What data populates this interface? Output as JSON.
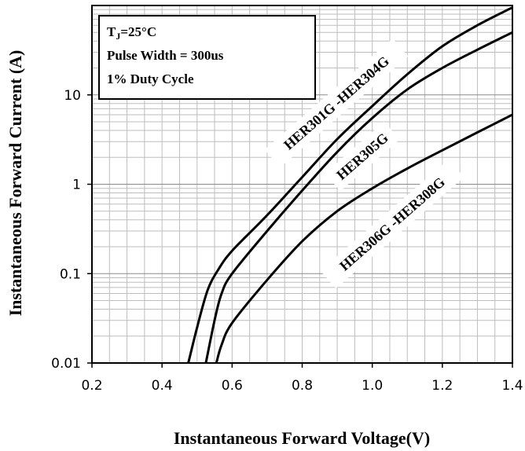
{
  "chart_data": {
    "type": "line",
    "xlabel": "Instantaneous Forward Voltage(V)",
    "ylabel": "Instantaneous Forward Current (A)",
    "xlim": [
      0.2,
      1.4
    ],
    "ylim": [
      0.01,
      100
    ],
    "yscale": "log",
    "x_ticks": [
      "0.2",
      "0.4",
      "0.6",
      "0.8",
      "1.0",
      "1.2",
      "1.4"
    ],
    "y_ticks": [
      "0.01",
      "0.1",
      "1",
      "10"
    ],
    "grid": true,
    "conditions": {
      "temperature_prefix": "T",
      "temperature_sub": "J",
      "temperature_value": "=25°C",
      "pulse_width": "Pulse Width = 300us",
      "duty_cycle": "1% Duty Cycle"
    },
    "series": [
      {
        "name": "HER301G -HER304G",
        "x": [
          0.475,
          0.5,
          0.53,
          0.56,
          0.6,
          0.7,
          0.8,
          0.9,
          1.0,
          1.1,
          1.2,
          1.3,
          1.4
        ],
        "y": [
          0.01,
          0.025,
          0.065,
          0.11,
          0.18,
          0.45,
          1.2,
          3.2,
          7.5,
          17,
          35,
          60,
          95
        ]
      },
      {
        "name": "HER305G",
        "x": [
          0.525,
          0.55,
          0.57,
          0.6,
          0.7,
          0.8,
          0.9,
          1.0,
          1.1,
          1.2,
          1.3,
          1.4
        ],
        "y": [
          0.01,
          0.03,
          0.06,
          0.1,
          0.3,
          0.85,
          2.3,
          5.5,
          11.5,
          20,
          32,
          50
        ]
      },
      {
        "name": "HER306G -HER308G",
        "x": [
          0.555,
          0.57,
          0.6,
          0.7,
          0.8,
          0.9,
          1.0,
          1.1,
          1.2,
          1.3,
          1.4
        ],
        "y": [
          0.01,
          0.016,
          0.028,
          0.085,
          0.23,
          0.5,
          0.9,
          1.5,
          2.4,
          3.8,
          6
        ]
      }
    ]
  }
}
